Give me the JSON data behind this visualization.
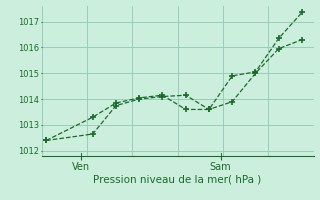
{
  "title": "Pression niveau de la mer( hPa )",
  "bg_color": "#cceedd",
  "grid_color": "#99ccbb",
  "line_color": "#1a6b2a",
  "ylim": [
    1011.8,
    1017.6
  ],
  "yticks": [
    1012,
    1013,
    1014,
    1015,
    1016,
    1017
  ],
  "series1_x": [
    0,
    2,
    3,
    4,
    5,
    6,
    7,
    8,
    9,
    10,
    11
  ],
  "series1_y": [
    1012.4,
    1012.65,
    1013.75,
    1014.0,
    1014.1,
    1014.15,
    1013.6,
    1013.9,
    1015.0,
    1015.95,
    1016.3
  ],
  "series2_x": [
    0,
    2,
    3,
    4,
    5,
    6,
    7,
    8,
    9,
    10,
    11
  ],
  "series2_y": [
    1012.4,
    1013.3,
    1013.85,
    1014.05,
    1014.15,
    1013.6,
    1013.6,
    1014.9,
    1015.05,
    1016.35,
    1017.35
  ],
  "ven_x": 1.5,
  "sam_x": 7.5,
  "xlim": [
    -0.2,
    11.5
  ],
  "x_day_labels": [
    {
      "label": "Ven",
      "x": 1.5
    },
    {
      "label": "Sam",
      "x": 7.5
    }
  ],
  "n_vcols": 6,
  "ylabel_fontsize": 6,
  "xlabel_fontsize": 7.5,
  "xtick_fontsize": 7
}
